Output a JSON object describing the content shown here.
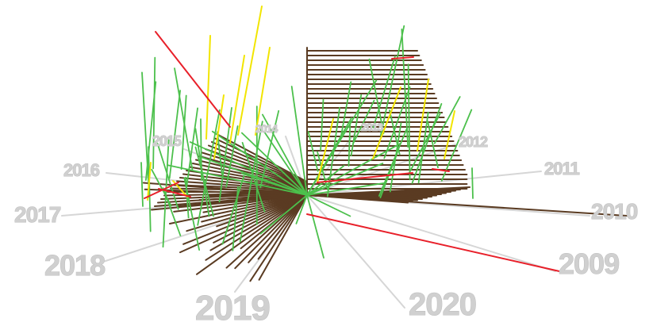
{
  "chart_data": {
    "type": "radial-year-spiral",
    "title": "",
    "colors": {
      "background": "#ffffff",
      "year_spoke": "#d6d6d6",
      "year_label": "#cfcfcf",
      "bar": "#5a3b22",
      "green": "#4cc04c",
      "yellow": "#f2e500",
      "red": "#e8202a"
    },
    "years": [
      "2009",
      "2010",
      "2011",
      "2012",
      "2013",
      "2014",
      "2015",
      "2016",
      "2017",
      "2018",
      "2019",
      "2020"
    ]
  }
}
